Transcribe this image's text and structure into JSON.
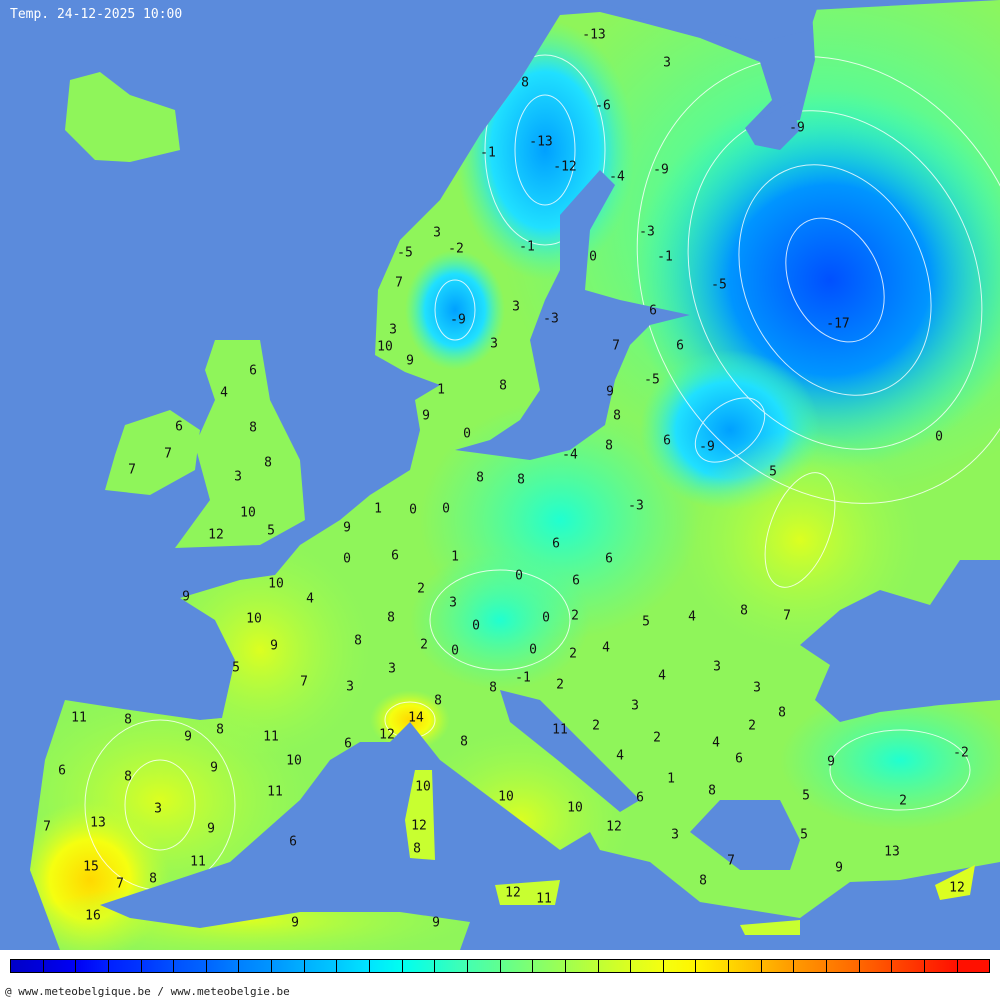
{
  "title": "Temp. 24-12-2025 10:00",
  "footer": "@ www.meteobelgique.be / www.meteobelgie.be",
  "colors": {
    "sea": "#5b8bdc",
    "land_base": "#8ff55a",
    "contour": "#ffffff"
  },
  "legend_colors": [
    "#0000c8",
    "#0000dc",
    "#0000f5",
    "#0020ff",
    "#0035ff",
    "#0050ff",
    "#0065ff",
    "#0080ff",
    "#0095ff",
    "#00b0ff",
    "#00c8ff",
    "#00e5ff",
    "#00fff0",
    "#20ffd0",
    "#45ffb0",
    "#60ff90",
    "#80ff70",
    "#a0ff50",
    "#c0ff35",
    "#dcff20",
    "#f5ff10",
    "#fff500",
    "#ffd800",
    "#ffb800",
    "#ff9a00",
    "#ff8000",
    "#ff6600",
    "#ff4a00",
    "#ff2c00",
    "#ff1000"
  ],
  "temperatures": [
    -13,
    3,
    8,
    -6,
    -9,
    -13,
    -1,
    -12,
    -4,
    -9,
    -3,
    -2,
    3,
    -1,
    0,
    -1,
    -5,
    7,
    -5,
    3,
    -9,
    -3,
    6,
    -17,
    3,
    10,
    9,
    3,
    7,
    6,
    6,
    4,
    1,
    8,
    -5,
    9,
    9,
    8,
    6,
    8,
    0,
    8,
    6,
    -9,
    0,
    7,
    8,
    -4,
    7,
    3,
    8,
    8,
    5,
    10,
    -3,
    1,
    0,
    0,
    9,
    12,
    5,
    0,
    6,
    1,
    6,
    6,
    10,
    0,
    6,
    9,
    4,
    2,
    3,
    10,
    8,
    0,
    0,
    2,
    5,
    4,
    8,
    7,
    9,
    8,
    2,
    0,
    0,
    2,
    4,
    5,
    7,
    3,
    3,
    3,
    4,
    3,
    8,
    8,
    -1,
    2,
    3,
    11,
    8,
    14,
    8,
    9,
    8,
    11,
    12,
    6,
    8,
    11,
    2,
    2,
    4,
    2,
    6,
    10,
    4,
    6,
    9,
    -2,
    8,
    9,
    1,
    3,
    11,
    10,
    8,
    5,
    2,
    7,
    13,
    9,
    10,
    10,
    6,
    12,
    12,
    5,
    6,
    3,
    8,
    13,
    15,
    11,
    7,
    9,
    7,
    8,
    8,
    12,
    11,
    12,
    16,
    9,
    9
  ]
}
